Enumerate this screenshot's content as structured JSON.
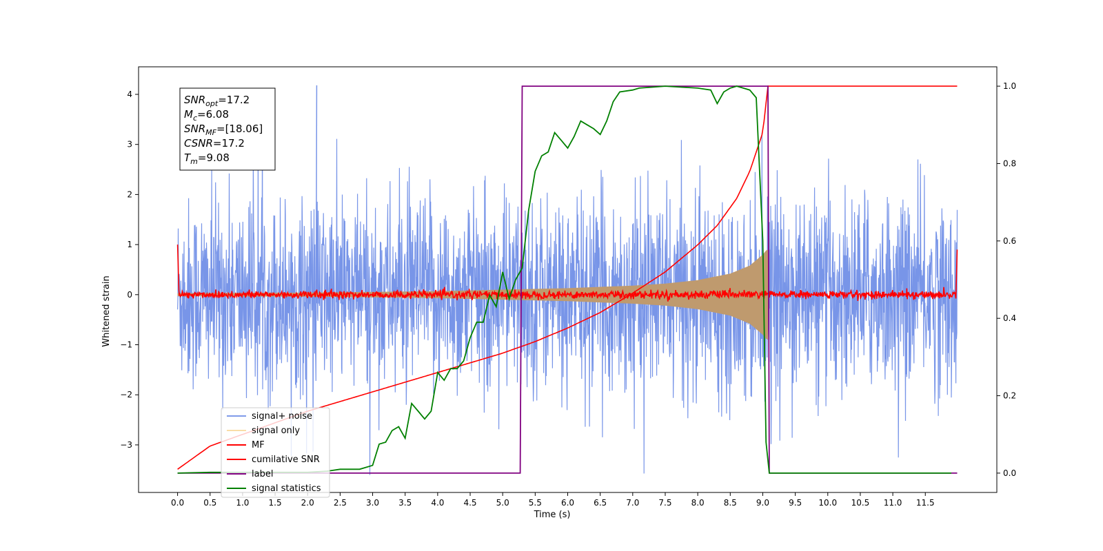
{
  "chart_data": {
    "type": "line",
    "title": "",
    "xlabel": "Time (s)",
    "ylabel": "Whitened strain",
    "xlim": [
      -0.6,
      12.6
    ],
    "ylim": [
      -3.95,
      4.55
    ],
    "y2lim": [
      -0.05,
      1.05
    ],
    "x_ticks": [
      0.0,
      0.5,
      1.0,
      1.5,
      2.0,
      2.5,
      3.0,
      3.5,
      4.0,
      4.5,
      5.0,
      5.5,
      6.0,
      6.5,
      7.0,
      7.5,
      8.0,
      8.5,
      9.0,
      9.5,
      10.0,
      10.5,
      11.0,
      11.5
    ],
    "x_tick_labels": [
      "0.0",
      "0.5",
      "1.0",
      "1.5",
      "2.0",
      "2.5",
      "3.0",
      "3.5",
      "4.0",
      "4.5",
      "5.0",
      "5.5",
      "6.0",
      "6.5",
      "7.0",
      "7.5",
      "8.0",
      "8.5",
      "9.0",
      "9.5",
      "10.0",
      "10.5",
      "11.0",
      "11.5"
    ],
    "y_ticks": [
      4,
      3,
      2,
      1,
      0,
      -1,
      -2,
      -3
    ],
    "y_tick_labels": [
      "4",
      "3",
      "2",
      "1",
      "0",
      "−1",
      "−2",
      "−3"
    ],
    "y2_ticks": [
      1.0,
      0.8,
      0.6,
      0.4,
      0.2,
      0.0
    ],
    "y2_tick_labels": [
      "1.0",
      "0.8",
      "0.6",
      "0.4",
      "0.2",
      "0.0"
    ],
    "grid": false,
    "legend_position": "lower-left",
    "annotation": {
      "lines": [
        {
          "sym": "SNR",
          "sub": "opt",
          "val": "=17.2"
        },
        {
          "sym": "M",
          "sub": "c",
          "val": "=6.08"
        },
        {
          "sym": "SNR",
          "sub": "MF",
          "val": "=[18.06]"
        },
        {
          "sym": "CSNR",
          "sub": "",
          "val": "=17.2"
        },
        {
          "sym": "T",
          "sub": "m",
          "val": "=9.08"
        }
      ]
    },
    "series": [
      {
        "name": "signal+ noise",
        "color": "#7895e8",
        "axis": "left",
        "description": "whitened noise with embedded chirp, approx. amplitude range",
        "x_range": [
          0.0,
          11.99
        ],
        "amplitude_upper": 2.3,
        "amplitude_lower": -2.3,
        "max_peak": 4.18,
        "min_peak": -3.6
      },
      {
        "name": "signal only",
        "color": "#f5c66c",
        "axis": "left",
        "envelope_x": [
          0.0,
          2.0,
          4.0,
          5.0,
          6.0,
          7.0,
          7.5,
          8.0,
          8.5,
          8.8,
          9.0,
          9.05,
          9.08
        ],
        "envelope_y": [
          0.03,
          0.04,
          0.07,
          0.1,
          0.13,
          0.18,
          0.22,
          0.29,
          0.42,
          0.58,
          0.8,
          0.88,
          0.9
        ]
      },
      {
        "name": "MF",
        "color": "#ff0000",
        "axis": "left",
        "description": "matched filter output, noise around zero",
        "x_range": [
          0.0,
          11.99
        ],
        "start_value": 1.0,
        "end_value": 0.9
      },
      {
        "name": "cumilative SNR",
        "color": "#ff0000",
        "axis": "right",
        "x": [
          0.0,
          0.5,
          1.0,
          1.5,
          2.0,
          2.5,
          3.0,
          3.5,
          4.0,
          4.5,
          5.0,
          5.5,
          6.0,
          6.5,
          7.0,
          7.5,
          8.0,
          8.3,
          8.6,
          8.8,
          9.0,
          9.08,
          11.99
        ],
        "values": [
          0.01,
          0.07,
          0.1,
          0.13,
          0.16,
          0.185,
          0.21,
          0.235,
          0.26,
          0.285,
          0.31,
          0.34,
          0.375,
          0.415,
          0.465,
          0.52,
          0.59,
          0.64,
          0.71,
          0.78,
          0.88,
          1.0,
          1.0
        ]
      },
      {
        "name": "label",
        "color": "#800080",
        "axis": "right",
        "x": [
          0.0,
          5.27,
          5.3,
          9.08,
          9.1,
          11.99
        ],
        "values": [
          0.0,
          0.0,
          1.0,
          1.0,
          0.0,
          0.0
        ]
      },
      {
        "name": "signal statistics",
        "color": "#008000",
        "axis": "right",
        "x": [
          0.0,
          0.5,
          1.0,
          1.5,
          2.0,
          2.3,
          2.5,
          2.8,
          3.0,
          3.1,
          3.2,
          3.3,
          3.4,
          3.5,
          3.6,
          3.7,
          3.8,
          3.9,
          4.0,
          4.1,
          4.2,
          4.3,
          4.4,
          4.5,
          4.6,
          4.7,
          4.8,
          4.9,
          5.0,
          5.1,
          5.2,
          5.3,
          5.4,
          5.5,
          5.6,
          5.7,
          5.8,
          5.9,
          6.0,
          6.1,
          6.2,
          6.3,
          6.4,
          6.5,
          6.6,
          6.7,
          6.8,
          7.0,
          7.1,
          7.5,
          8.0,
          8.2,
          8.3,
          8.4,
          8.5,
          8.6,
          8.7,
          8.8,
          8.9,
          9.0,
          9.05,
          9.1,
          9.2,
          9.5,
          10.0,
          11.0,
          11.9
        ],
        "values": [
          0.0,
          0.002,
          0.002,
          0.002,
          0.002,
          0.005,
          0.01,
          0.01,
          0.02,
          0.075,
          0.08,
          0.11,
          0.12,
          0.09,
          0.18,
          0.16,
          0.14,
          0.16,
          0.26,
          0.24,
          0.27,
          0.27,
          0.29,
          0.35,
          0.39,
          0.39,
          0.46,
          0.43,
          0.52,
          0.45,
          0.5,
          0.53,
          0.68,
          0.78,
          0.82,
          0.83,
          0.88,
          0.86,
          0.84,
          0.87,
          0.91,
          0.9,
          0.89,
          0.875,
          0.91,
          0.96,
          0.985,
          0.99,
          0.995,
          1.0,
          0.995,
          0.99,
          0.955,
          0.985,
          0.995,
          1.0,
          0.995,
          0.99,
          0.97,
          0.6,
          0.08,
          0.0,
          0.0,
          0.0,
          0.0,
          0.0,
          0.0
        ]
      }
    ]
  }
}
